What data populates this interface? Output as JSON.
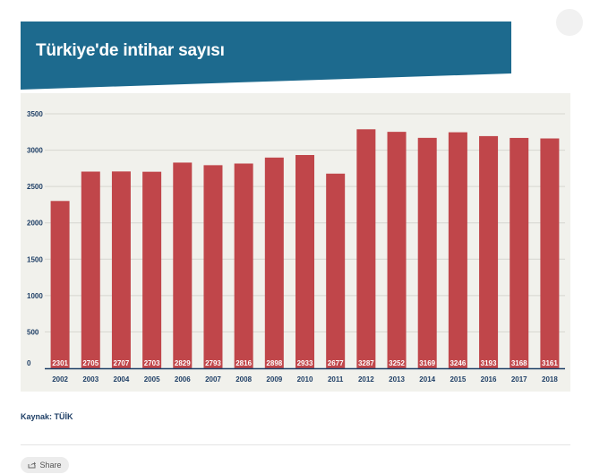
{
  "title": "Türkiye'de intihar sayısı",
  "source_label": "Kaynak: TÜİK",
  "share_label": "Share",
  "icons": {
    "share": "share-icon"
  },
  "colors": {
    "banner": "#1d6a8e",
    "bar": "#c0464a",
    "panel": "#f1f1ec",
    "axis": "#1f3f66"
  },
  "chart_data": {
    "type": "bar",
    "title": "Türkiye'de intihar sayısı",
    "xlabel": "",
    "ylabel": "",
    "ylim": [
      0,
      3500
    ],
    "yticks": [
      0,
      500,
      1000,
      1500,
      2000,
      2500,
      3000,
      3500
    ],
    "grid": true,
    "categories": [
      "2002",
      "2003",
      "2004",
      "2005",
      "2006",
      "2007",
      "2008",
      "2009",
      "2010",
      "2011",
      "2012",
      "2013",
      "2014",
      "2015",
      "2016",
      "2017",
      "2018"
    ],
    "values": [
      2301,
      2705,
      2707,
      2703,
      2829,
      2793,
      2816,
      2898,
      2933,
      2677,
      3287,
      3252,
      3169,
      3246,
      3193,
      3168,
      3161
    ],
    "data_labels": true
  }
}
